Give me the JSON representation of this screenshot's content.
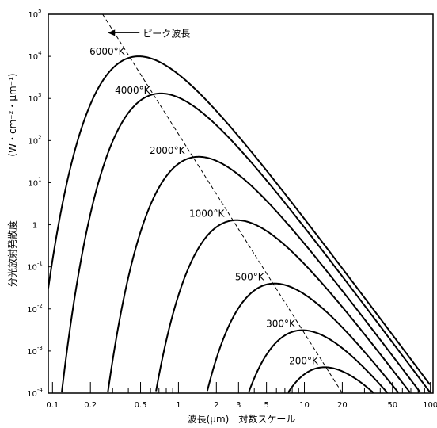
{
  "chart_data": {
    "type": "line",
    "title": "",
    "xlabel": "波長(μm)　対数スケール",
    "ylabel": "分光放射発散度",
    "ylabel_units": "(W・cm⁻²・μm⁻¹)",
    "x_scale": "log",
    "y_scale": "log",
    "xlim": [
      0.0926,
      105
    ],
    "ylim": [
      0.0001,
      100000
    ],
    "x_ticks": [
      {
        "value": 0.1,
        "label": "0.1"
      },
      {
        "value": 0.2,
        "label": "0.2"
      },
      {
        "value": 0.5,
        "label": "0.5"
      },
      {
        "value": 1,
        "label": "1"
      },
      {
        "value": 2,
        "label": "2"
      },
      {
        "value": 3,
        "label": "3"
      },
      {
        "value": 5,
        "label": "5"
      },
      {
        "value": 10,
        "label": "10"
      },
      {
        "value": 20,
        "label": "20"
      },
      {
        "value": 50,
        "label": "50"
      },
      {
        "value": 100,
        "label": "100"
      }
    ],
    "y_ticks": [
      {
        "value": 100000,
        "base": "10",
        "exp": "5"
      },
      {
        "value": 10000,
        "base": "10",
        "exp": "4"
      },
      {
        "value": 1000,
        "base": "10",
        "exp": "3"
      },
      {
        "value": 100,
        "base": "10",
        "exp": "2"
      },
      {
        "value": 10,
        "base": "10",
        "exp": "1"
      },
      {
        "value": 1,
        "base": "1",
        "exp": ""
      },
      {
        "value": 0.1,
        "base": "10",
        "exp": "-1"
      },
      {
        "value": 0.01,
        "base": "10",
        "exp": "-2"
      },
      {
        "value": 0.001,
        "base": "10",
        "exp": "-3"
      },
      {
        "value": 0.0001,
        "base": "10",
        "exp": "-4"
      }
    ],
    "series": [
      {
        "name": "6000°K",
        "temperature_K": 6000
      },
      {
        "name": "4000°K",
        "temperature_K": 4000
      },
      {
        "name": "2000°K",
        "temperature_K": 2000
      },
      {
        "name": "1000°K",
        "temperature_K": 1000
      },
      {
        "name": "500°K",
        "temperature_K": 500
      },
      {
        "name": "300°K",
        "temperature_K": 300
      },
      {
        "name": "200°K",
        "temperature_K": 200
      }
    ],
    "peak_line": {
      "label": "ピーク波長",
      "x": [
        0.25,
        20
      ],
      "y": [
        100000,
        0.0001
      ],
      "style": "dashed"
    },
    "grid": false,
    "legend": "none"
  }
}
